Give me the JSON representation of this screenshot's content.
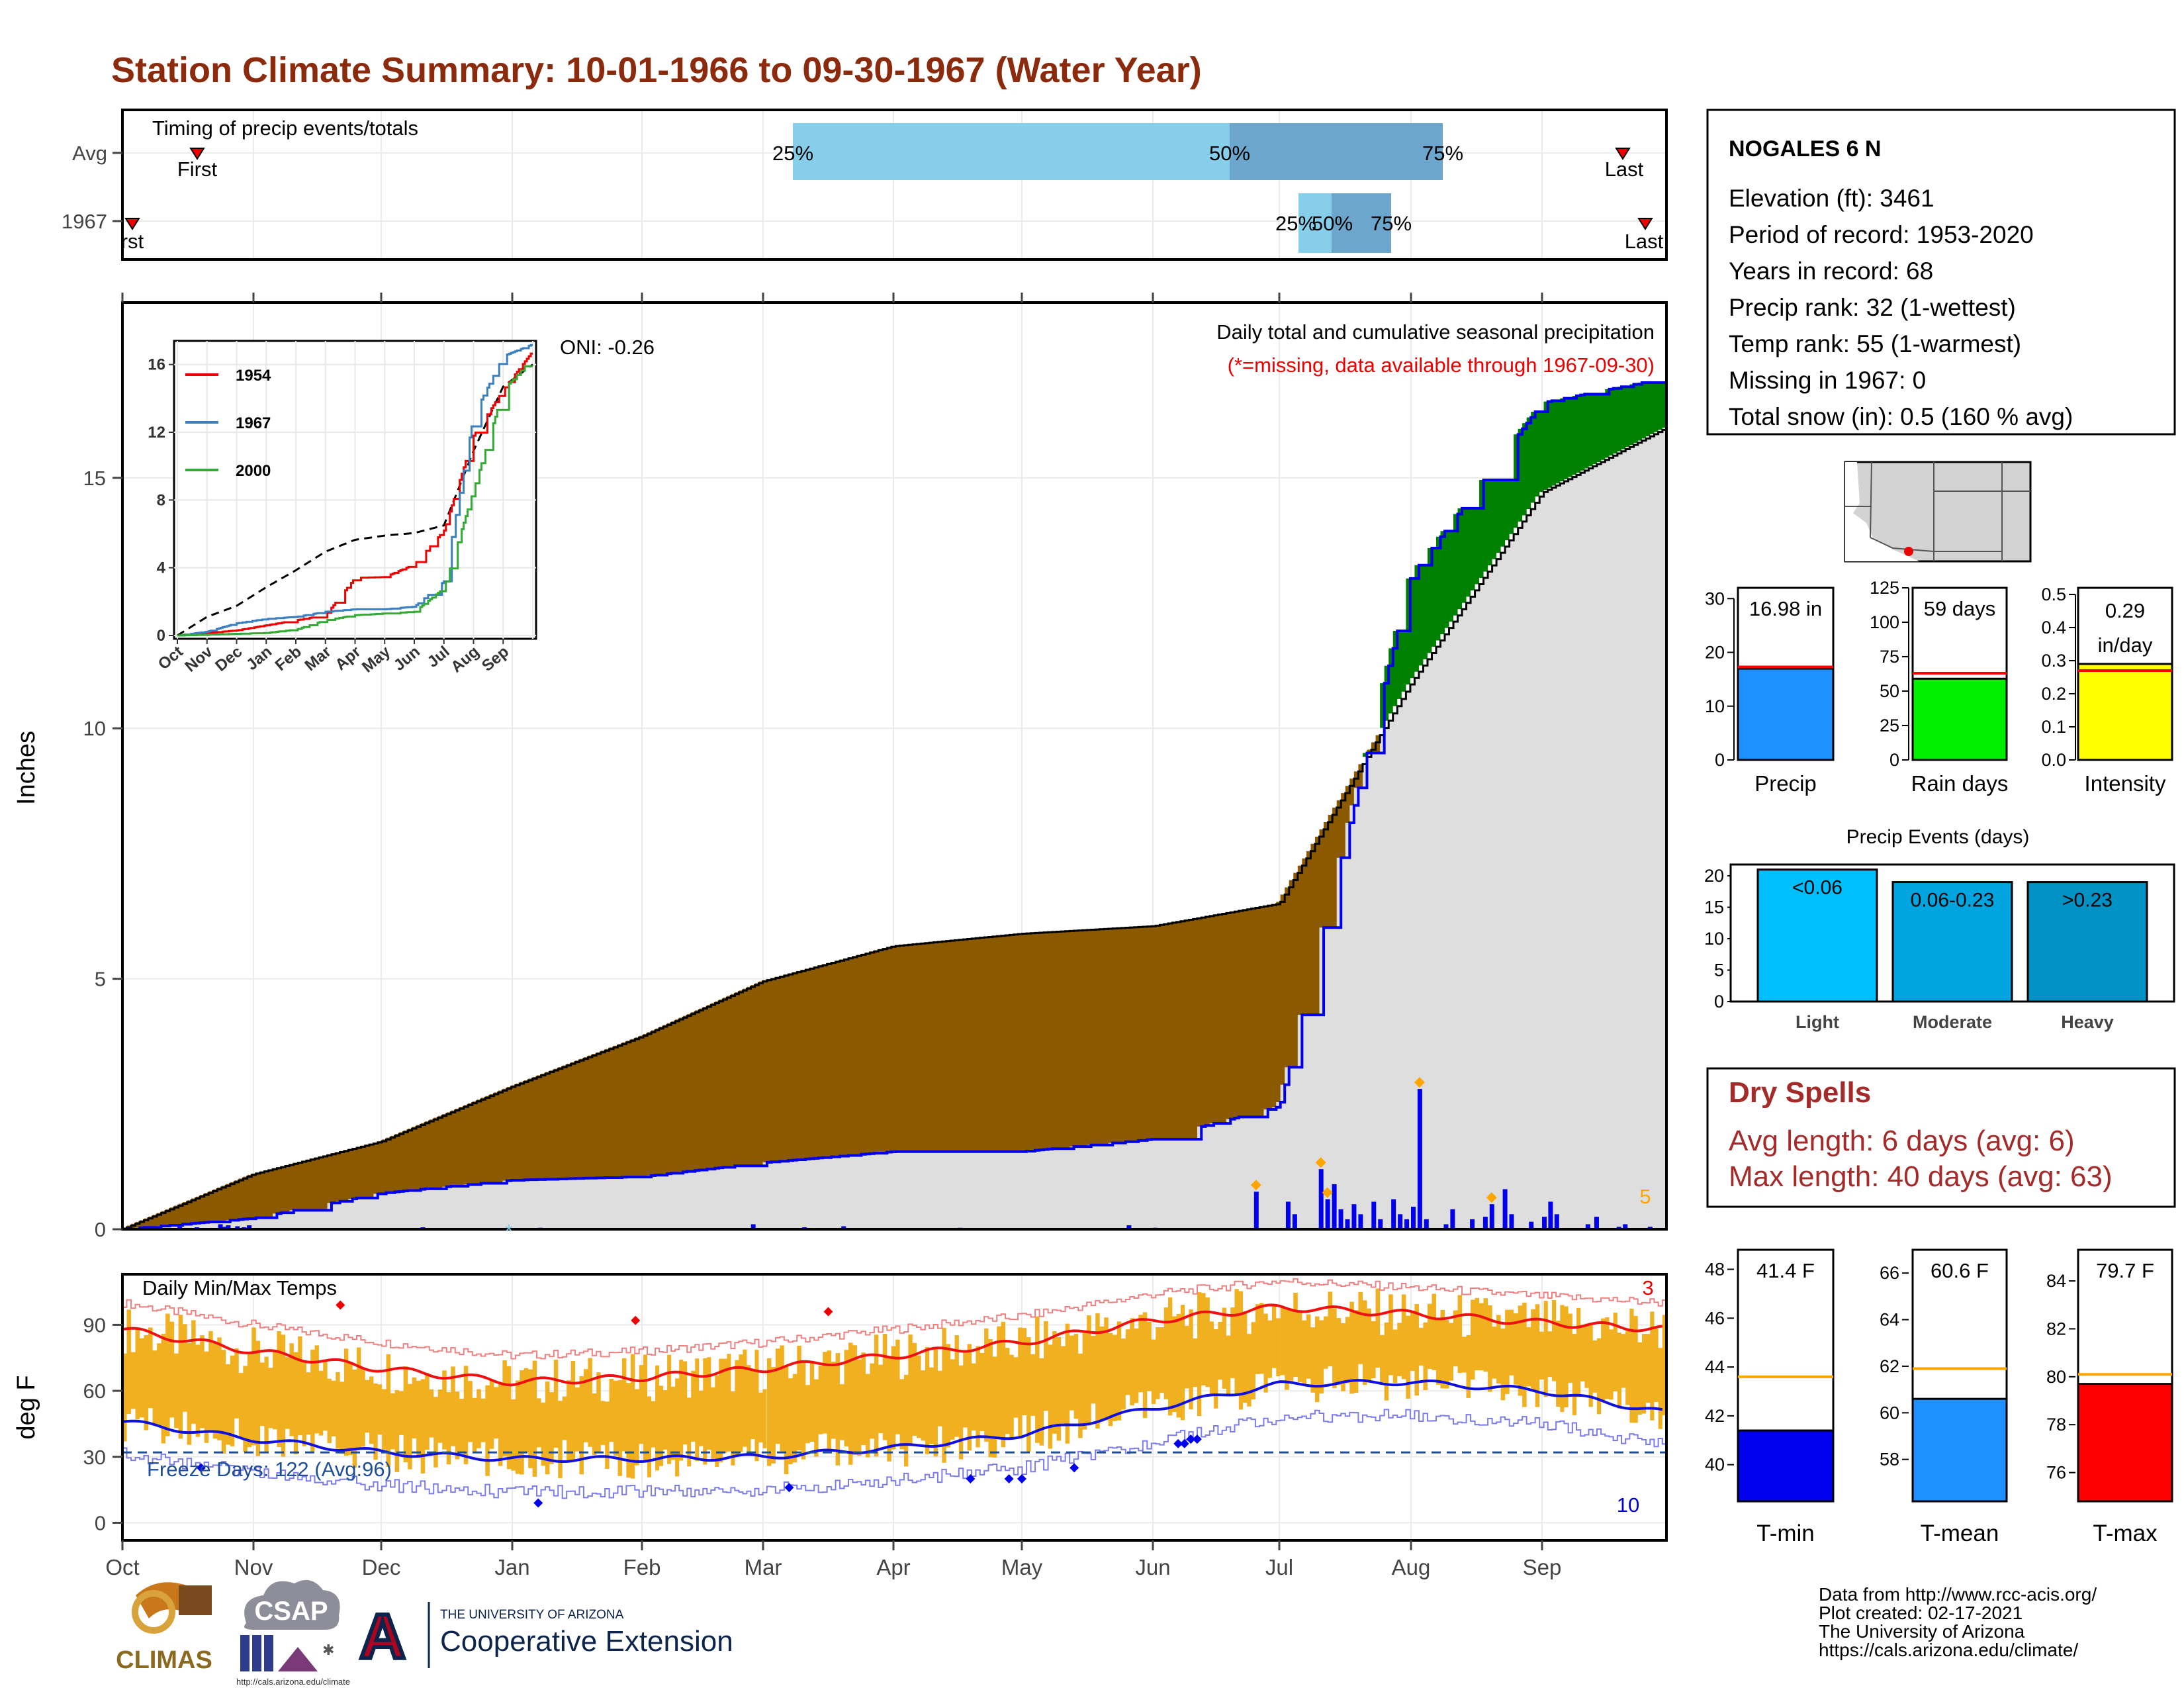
{
  "title": "Station Climate Summary: 10-01-1966 to 09-30-1967 (Water Year)",
  "colors": {
    "title": "#8B2A0C",
    "avg_fill": "#8B5A00",
    "above_fill": "#008000",
    "cumline": "#0000EE",
    "base_fill": "#DEDEDE",
    "timing_q_light": "#87CEEB",
    "timing_q_dark": "#6CA6CD",
    "precip_bar": "#1E90FF",
    "raindays_bar": "#00EE00",
    "intensity_bar": "#FFFF00",
    "avg_line": "#FF0000",
    "events": [
      "#00BFFF",
      "#00A5E0",
      "#0092C4"
    ],
    "temp_bar": "#F0B020",
    "tmax_avg": "#EE1111",
    "tmin_avg": "#1111DD",
    "dryspell": "#A52A2A",
    "gauge_tmin": "#0000EE",
    "gauge_tmean": "#1E90FF",
    "gauge_tmax": "#FF0000",
    "gauge_avg": "#FFA500"
  },
  "timing": {
    "caption": "Timing of precip events/totals",
    "rows": [
      "Avg",
      "1967"
    ],
    "avg": {
      "first": "Nov",
      "last": "Sep",
      "first_label": "First",
      "last_label": "Last",
      "q25_label": "25%",
      "q50_label": "50%",
      "q75_label": "75%"
    },
    "year": {
      "first_label": "First",
      "last_label": "Last",
      "q25_label": "25%",
      "q50_label": "50%",
      "q75_label": "75%"
    }
  },
  "precip_panel": {
    "ylabel": "Inches",
    "yticks": [
      "0",
      "5",
      "10",
      "15"
    ],
    "caption": "Daily total and cumulative seasonal precipitation",
    "caption2": "(*=missing, data available through 1967-09-30)",
    "oni": "ONI: -0.26",
    "count_label": "5",
    "missing_mark": "*"
  },
  "inset": {
    "yticks": [
      "0",
      "4",
      "8",
      "12",
      "16"
    ],
    "xticks": [
      "Oct",
      "Nov",
      "Dec",
      "Jan",
      "Feb",
      "Mar",
      "Apr",
      "May",
      "Jun",
      "Jul",
      "Aug",
      "Sep"
    ],
    "legend": [
      {
        "name": "1954",
        "color": "#EE0000"
      },
      {
        "name": "1967",
        "color": "#3A7FC0"
      },
      {
        "name": "2000",
        "color": "#33AA33"
      }
    ]
  },
  "temp_panel": {
    "ylabel": "deg F",
    "caption": "Daily Min/Max Temps",
    "yticks": [
      "0",
      "30",
      "60",
      "90"
    ],
    "freeze_label": "Freeze Days: 122 (Avg:96)",
    "count_max": "3",
    "count_min": "10"
  },
  "x_months": [
    "Oct",
    "Nov",
    "Dec",
    "Jan",
    "Feb",
    "Mar",
    "Apr",
    "May",
    "Jun",
    "Jul",
    "Aug",
    "Sep"
  ],
  "station": {
    "name": "NOGALES 6 N",
    "lines": [
      "Elevation (ft): 3461",
      "Period of record: 1953-2020",
      "Years in record: 68",
      "Precip rank: 32 (1-wettest)",
      "Temp rank: 55 (1-warmest)",
      "Missing in 1967: 0",
      "Total snow (in): 0.5 (160 % avg)"
    ]
  },
  "gauges": [
    {
      "label": "Precip",
      "value_text": "16.98 in",
      "value": 16.98,
      "avg": 17.3,
      "ymax": 32,
      "ticks": [
        0,
        10,
        20,
        30
      ],
      "color_key": "precip_bar"
    },
    {
      "label": "Rain days",
      "value_text": "59 days",
      "value": 59,
      "avg": 63,
      "ymax": 125,
      "ticks": [
        0,
        25,
        50,
        75,
        100,
        125
      ],
      "color_key": "raindays_bar"
    },
    {
      "label": "Intensity",
      "value_text": "0.29 in/day",
      "value_line1": "0.29",
      "value_line2": "in/day",
      "value": 0.29,
      "avg": 0.27,
      "ymax": 0.52,
      "ticks": [
        0.0,
        0.1,
        0.2,
        0.3,
        0.4,
        0.5
      ],
      "tick_labels": [
        "0.0",
        "0.1",
        "0.2",
        "0.3",
        "0.4",
        "0.5"
      ],
      "color_key": "intensity_bar"
    }
  ],
  "events": {
    "title": "Precip Events (days)",
    "ticks": [
      "0",
      "5",
      "10",
      "15",
      "20"
    ],
    "bars": [
      {
        "cat": "Light",
        "label": "<0.06",
        "value": 21
      },
      {
        "cat": "Moderate",
        "label": "0.06-0.23",
        "value": 19
      },
      {
        "cat": "Heavy",
        "label": ">0.23",
        "value": 19
      }
    ]
  },
  "dry_spells": {
    "title": "Dry Spells",
    "avg": "Avg length: 6 days (avg: 6)",
    "max": "Max length: 40 days (avg: 63)"
  },
  "temp_gauges": [
    {
      "label": "T-min",
      "value_text": "41.4 F",
      "value": 41.4,
      "avg": 43.6,
      "ymin": 38.5,
      "ymax": 48.8,
      "ticks": [
        40,
        42,
        44,
        46,
        48
      ],
      "color_key": "gauge_tmin"
    },
    {
      "label": "T-mean",
      "value_text": "60.6 F",
      "value": 60.6,
      "avg": 61.9,
      "ymin": 56.2,
      "ymax": 67.0,
      "ticks": [
        58,
        60,
        62,
        64,
        66
      ],
      "color_key": "gauge_tmean"
    },
    {
      "label": "T-max",
      "value_text": "79.7 F",
      "value": 79.7,
      "avg": 80.1,
      "ymin": 74.8,
      "ymax": 85.3,
      "ticks": [
        76,
        78,
        80,
        82,
        84
      ],
      "color_key": "gauge_tmax"
    }
  ],
  "logos": {
    "climas": "CLIMAS",
    "csap": "CSAP",
    "csap_url": "http://cals.arizona.edu/climate",
    "ua_small": "THE UNIVERSITY OF ARIZONA",
    "ua_big": "Cooperative Extension",
    "ua_letter": "A"
  },
  "credits": [
    "Data from http://www.rcc-acis.org/",
    "Plot created: 02-17-2021",
    "The University of Arizona",
    "https://cals.arizona.edu/climate/"
  ],
  "chart_data": {
    "type": "area",
    "title": "Daily total and cumulative seasonal precipitation",
    "ylabel": "Inches",
    "ylim": [
      0,
      18.5
    ],
    "x": [
      "Oct",
      "Nov",
      "Dec",
      "Jan",
      "Feb",
      "Mar",
      "Apr",
      "May",
      "Jun",
      "Jul",
      "Aug",
      "Sep",
      "Oct"
    ],
    "series": [
      {
        "name": "Avg cumulative",
        "values": [
          0,
          1.1,
          1.75,
          2.85,
          3.85,
          4.95,
          5.65,
          5.9,
          6.05,
          6.5,
          10.9,
          14.7,
          16.0
        ]
      },
      {
        "name": "1967 cumulative",
        "values": [
          0,
          0.22,
          0.72,
          0.98,
          1.05,
          1.33,
          1.55,
          1.55,
          1.8,
          2.45,
          13.05,
          16.5,
          17.0
        ]
      }
    ],
    "daily_max": 2.8,
    "temps": {
      "ylabel": "deg F",
      "ylim": [
        -8,
        113
      ],
      "x": [
        "Oct",
        "Nov",
        "Dec",
        "Jan",
        "Feb",
        "Mar",
        "Apr",
        "May",
        "Jun",
        "Jul",
        "Aug",
        "Sep",
        "Oct"
      ],
      "tmax_avg": [
        88,
        78,
        70,
        64,
        66,
        70,
        76,
        82,
        92,
        98,
        95,
        91,
        88
      ],
      "tmin_avg": [
        46,
        38,
        32,
        29,
        29,
        30,
        34,
        40,
        52,
        63,
        64,
        60,
        50
      ],
      "freeze_line": 32
    }
  }
}
